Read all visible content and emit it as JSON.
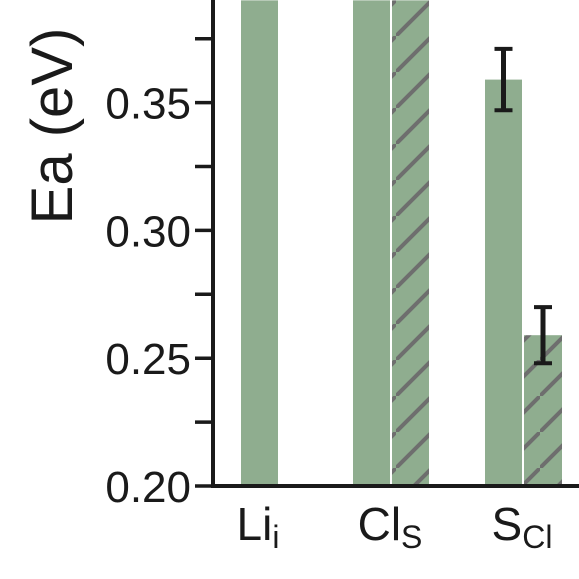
{
  "chart_data": {
    "type": "bar",
    "ylabel": "Ea (eV)",
    "ylim": [
      0.2,
      0.385
    ],
    "yticks": [
      0.2,
      0.25,
      0.3,
      0.35
    ],
    "ytick_labels": [
      "0.20",
      "0.25",
      "0.30",
      "0.35"
    ],
    "minor_step": 0.025,
    "grid": false,
    "categories": [
      {
        "main": "Li",
        "sub": "i"
      },
      {
        "main": "Cl",
        "sub": "S"
      },
      {
        "main": "S",
        "sub": "Cl"
      }
    ],
    "series": [
      {
        "values": [
          0.39,
          0.39,
          0.359
        ],
        "errors": [
          null,
          null,
          0.012
        ],
        "color": "#8fad8f",
        "pattern": "solid"
      },
      {
        "values": [
          null,
          0.39,
          0.259
        ],
        "errors": [
          null,
          null,
          0.011
        ],
        "color": "#8fad8f",
        "pattern": "hatched",
        "hatch_color": "#6e6e6e"
      }
    ],
    "axis_color": "#1a1a1a"
  }
}
